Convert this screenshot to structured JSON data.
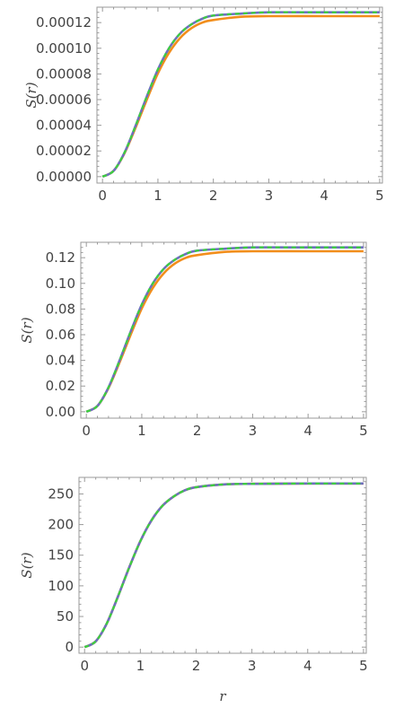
{
  "figure": {
    "xlabel": "r"
  },
  "chart_data": [
    {
      "type": "line",
      "ylabel": "S(r)",
      "xlim": [
        -0.1,
        5.05
      ],
      "ylim": [
        -5e-06,
        0.000132
      ],
      "xticks": [
        0,
        1,
        2,
        3,
        4,
        5
      ],
      "xtick_labels": [
        "0",
        "1",
        "2",
        "3",
        "4",
        "5"
      ],
      "yticks": [
        0,
        2e-05,
        4e-05,
        6e-05,
        8e-05,
        0.0001,
        0.00012
      ],
      "ytick_labels": [
        "0.00000",
        "0.00002",
        "0.00004",
        "0.00006",
        "0.00008",
        "0.00010",
        "0.00012"
      ],
      "grid": false,
      "legend": false,
      "series": [
        {
          "color": "#F28E1C",
          "style": "solid",
          "x": [
            0,
            0.2,
            0.4,
            0.6,
            0.8,
            1.0,
            1.2,
            1.4,
            1.6,
            1.8,
            2.0,
            2.5,
            3.0,
            4.0,
            5.0
          ],
          "values": [
            0,
            4.5e-06,
            1.85e-05,
            3.85e-05,
            6e-05,
            8.05e-05,
            9.65e-05,
            0.000108,
            0.0001155,
            0.00012,
            0.000122,
            0.0001245,
            0.000125,
            0.000125,
            0.000125
          ]
        },
        {
          "color": "#6E6FC0",
          "style": "solid",
          "x": [
            0,
            0.2,
            0.4,
            0.6,
            0.8,
            1.0,
            1.2,
            1.4,
            1.6,
            1.8,
            2.0,
            2.5,
            3.0,
            4.0,
            5.0
          ],
          "values": [
            0,
            4.5e-06,
            1.9e-05,
            4e-05,
            6.25e-05,
            8.35e-05,
            0.0001,
            0.0001115,
            0.0001185,
            0.000123,
            0.0001255,
            0.000127,
            0.000128,
            0.000128,
            0.000128
          ]
        },
        {
          "color": "#3CD13C",
          "style": "dashed",
          "x": [
            0,
            0.2,
            0.4,
            0.6,
            0.8,
            1.0,
            1.2,
            1.4,
            1.6,
            1.8,
            2.0,
            2.5,
            3.0,
            4.0,
            5.0
          ],
          "values": [
            0,
            4.5e-06,
            1.9e-05,
            4e-05,
            6.25e-05,
            8.35e-05,
            0.0001,
            0.0001115,
            0.0001185,
            0.000123,
            0.0001255,
            0.000127,
            0.000128,
            0.000128,
            0.000128
          ]
        }
      ]
    },
    {
      "type": "line",
      "ylabel": "S(r)",
      "xlim": [
        -0.1,
        5.05
      ],
      "ylim": [
        -0.005,
        0.132
      ],
      "xticks": [
        0,
        1,
        2,
        3,
        4,
        5
      ],
      "xtick_labels": [
        "0",
        "1",
        "2",
        "3",
        "4",
        "5"
      ],
      "yticks": [
        0,
        0.02,
        0.04,
        0.06,
        0.08,
        0.1,
        0.12
      ],
      "ytick_labels": [
        "0.00",
        "0.02",
        "0.04",
        "0.06",
        "0.08",
        "0.10",
        "0.12"
      ],
      "grid": false,
      "legend": false,
      "series": [
        {
          "color": "#F28E1C",
          "style": "solid",
          "x": [
            0,
            0.2,
            0.4,
            0.6,
            0.8,
            1.0,
            1.2,
            1.4,
            1.6,
            1.8,
            2.0,
            2.5,
            3.0,
            4.0,
            5.0
          ],
          "values": [
            0,
            0.0045,
            0.0185,
            0.0385,
            0.06,
            0.0805,
            0.0965,
            0.108,
            0.1155,
            0.12,
            0.122,
            0.1245,
            0.125,
            0.125,
            0.125
          ]
        },
        {
          "color": "#6E6FC0",
          "style": "solid",
          "x": [
            0,
            0.2,
            0.4,
            0.6,
            0.8,
            1.0,
            1.2,
            1.4,
            1.6,
            1.8,
            2.0,
            2.5,
            3.0,
            4.0,
            5.0
          ],
          "values": [
            0,
            0.0045,
            0.019,
            0.04,
            0.0625,
            0.0835,
            0.1,
            0.1115,
            0.1185,
            0.123,
            0.1255,
            0.127,
            0.128,
            0.128,
            0.128
          ]
        },
        {
          "color": "#3CD13C",
          "style": "dashed",
          "x": [
            0,
            0.2,
            0.4,
            0.6,
            0.8,
            1.0,
            1.2,
            1.4,
            1.6,
            1.8,
            2.0,
            2.5,
            3.0,
            4.0,
            5.0
          ],
          "values": [
            0,
            0.0045,
            0.019,
            0.04,
            0.0625,
            0.0835,
            0.1,
            0.1115,
            0.1185,
            0.123,
            0.1255,
            0.127,
            0.128,
            0.128,
            0.128
          ]
        }
      ]
    },
    {
      "type": "line",
      "ylabel": "S(r)",
      "xlim": [
        -0.1,
        5.05
      ],
      "ylim": [
        -10,
        277
      ],
      "xticks": [
        0,
        1,
        2,
        3,
        4,
        5
      ],
      "xtick_labels": [
        "0",
        "1",
        "2",
        "3",
        "4",
        "5"
      ],
      "yticks": [
        0,
        50,
        100,
        150,
        200,
        250
      ],
      "ytick_labels": [
        "0",
        "50",
        "100",
        "150",
        "200",
        "250"
      ],
      "grid": false,
      "legend": false,
      "series": [
        {
          "color": "#F28E1C",
          "style": "solid",
          "x": [
            0,
            0.2,
            0.4,
            0.6,
            0.8,
            1.0,
            1.2,
            1.4,
            1.6,
            1.8,
            2.0,
            2.5,
            3.0,
            4.0,
            5.0
          ],
          "values": [
            0,
            9.5,
            39,
            83,
            130,
            173,
            207,
            231,
            246,
            256,
            261,
            265.5,
            266.5,
            267,
            267
          ]
        },
        {
          "color": "#6E6FC0",
          "style": "solid",
          "x": [
            0,
            0.2,
            0.4,
            0.6,
            0.8,
            1.0,
            1.2,
            1.4,
            1.6,
            1.8,
            2.0,
            2.5,
            3.0,
            4.0,
            5.0
          ],
          "values": [
            0,
            9.5,
            39,
            83,
            130,
            173,
            207,
            231,
            246,
            256,
            261,
            265.5,
            266.5,
            267,
            267
          ]
        },
        {
          "color": "#3CD13C",
          "style": "dashed",
          "x": [
            0,
            0.2,
            0.4,
            0.6,
            0.8,
            1.0,
            1.2,
            1.4,
            1.6,
            1.8,
            2.0,
            2.5,
            3.0,
            4.0,
            5.0
          ],
          "values": [
            0,
            9.5,
            39,
            83,
            130,
            173,
            207,
            231,
            246,
            256,
            261,
            265.5,
            266.5,
            267,
            267
          ]
        }
      ]
    }
  ]
}
